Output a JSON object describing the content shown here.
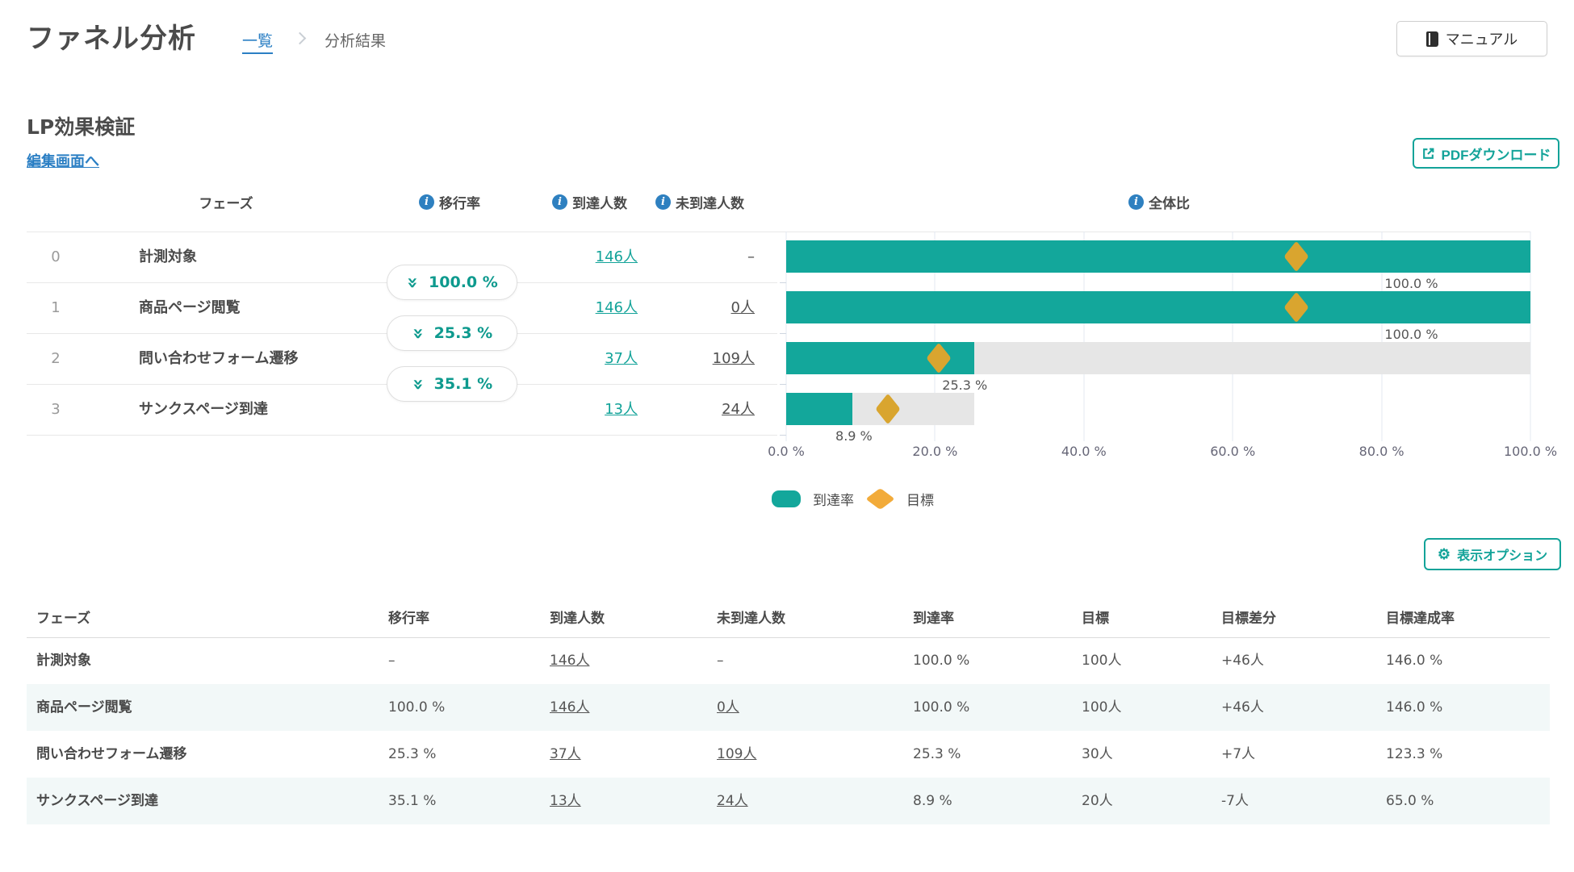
{
  "colors": {
    "teal": "#13a399",
    "bar_teal": "#13a79b",
    "diamond_chart": "#d9a52f",
    "diamond_legend": "#f2ab3a",
    "info_blue": "#2e80c0",
    "link_blue": "#2b7fc4",
    "bar_background": "#e6e6e6",
    "gridline": "#e3e9f2",
    "row_tint": "#f2f8f8"
  },
  "header": {
    "title": "ファネル分析",
    "breadcrumb_list": "一覧",
    "breadcrumb_current": "分析結果",
    "manual_button": "マニュアル"
  },
  "section": {
    "title": "LP効果検証",
    "edit_link": "編集画面へ",
    "pdf_button": "PDFダウンロード",
    "options_button": "表示オプション"
  },
  "funnel": {
    "headers": {
      "phase": "フェーズ",
      "transition_rate": "移行率",
      "reached": "到達人数",
      "not_reached": "未到達人数",
      "overall_ratio": "全体比"
    },
    "rows": [
      {
        "index": "0",
        "name": "計測対象",
        "reached": "146人",
        "not_reached": "–"
      },
      {
        "index": "1",
        "name": "商品ページ閲覧",
        "reached": "146人",
        "not_reached": "0人"
      },
      {
        "index": "2",
        "name": "問い合わせフォーム遷移",
        "reached": "37人",
        "not_reached": "109人"
      },
      {
        "index": "3",
        "name": "サンクスページ到達",
        "reached": "13人",
        "not_reached": "24人"
      }
    ],
    "transitions": [
      {
        "rate": "100.0 %"
      },
      {
        "rate": "25.3 %"
      },
      {
        "rate": "35.1 %"
      }
    ],
    "legend": {
      "reach_rate": "到達率",
      "target": "目標"
    }
  },
  "chart_data": {
    "type": "bar",
    "orientation": "horizontal",
    "title": "全体比",
    "categories": [
      "計測対象",
      "商品ページ閲覧",
      "問い合わせフォーム遷移",
      "サンクスページ到達"
    ],
    "series": [
      {
        "name": "到達率",
        "values": [
          100.0,
          100.0,
          25.3,
          8.9
        ],
        "color": "#13a79b"
      },
      {
        "name": "前フェーズ到達率(背景バー)",
        "values": [
          100.0,
          100.0,
          100.0,
          25.3
        ],
        "color": "#e6e6e6",
        "role": "background"
      },
      {
        "name": "目標",
        "values": [
          68.5,
          68.5,
          20.5,
          13.7
        ],
        "marker": "diamond",
        "color": "#d9a52f"
      }
    ],
    "bar_labels": [
      "100.0 %",
      "100.0 %",
      "25.3 %",
      "8.9 %"
    ],
    "x_ticks": [
      "0.0 %",
      "20.0 %",
      "40.0 %",
      "60.0 %",
      "80.0 %",
      "100.0 %"
    ],
    "grid_pcts": [
      0,
      20,
      40,
      60,
      80,
      100
    ],
    "xlim": [
      0,
      100
    ],
    "legend_position": "bottom",
    "rows": [
      {
        "reach": 100,
        "bg": 100,
        "target": 68.5,
        "label": "100.0 %",
        "label_center": 84
      },
      {
        "reach": 100,
        "bg": 100,
        "target": 68.5,
        "label": "100.0 %",
        "label_center": 84
      },
      {
        "reach": 25.3,
        "bg": 100,
        "target": 20.5,
        "label": "25.3 %",
        "label_center": 24
      },
      {
        "reach": 8.9,
        "bg": 25.3,
        "target": 13.7,
        "label": "8.9 %",
        "label_center": 9.1
      }
    ]
  },
  "table": {
    "headers": [
      "フェーズ",
      "移行率",
      "到達人数",
      "未到達人数",
      "到達率",
      "目標",
      "目標差分",
      "目標達成率"
    ],
    "rows": [
      {
        "phase": "計測対象",
        "transition": "–",
        "reached": "146人",
        "not_reached": "–",
        "reach_rate": "100.0 %",
        "target": "100人",
        "target_diff": "+46人",
        "target_rate": "146.0 %"
      },
      {
        "phase": "商品ページ閲覧",
        "transition": "100.0 %",
        "reached": "146人",
        "not_reached": "0人",
        "reach_rate": "100.0 %",
        "target": "100人",
        "target_diff": "+46人",
        "target_rate": "146.0 %"
      },
      {
        "phase": "問い合わせフォーム遷移",
        "transition": "25.3 %",
        "reached": "37人",
        "not_reached": "109人",
        "reach_rate": "25.3 %",
        "target": "30人",
        "target_diff": "+7人",
        "target_rate": "123.3 %"
      },
      {
        "phase": "サンクスページ到達",
        "transition": "35.1 %",
        "reached": "13人",
        "not_reached": "24人",
        "reach_rate": "8.9 %",
        "target": "20人",
        "target_diff": "-7人",
        "target_rate": "65.0 %"
      }
    ]
  }
}
